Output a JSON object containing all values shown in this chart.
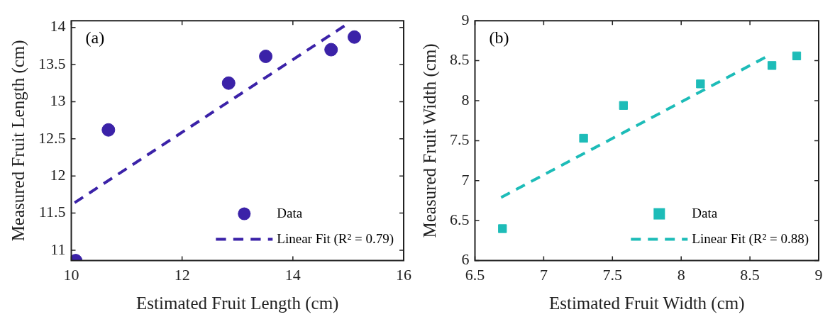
{
  "chart_data": [
    {
      "type": "scatter",
      "xlabel": "Estimated Fruit Length (cm)",
      "ylabel": "Measured Fruit Length (cm)",
      "annotations": [
        "(a)"
      ],
      "xlim": [
        10,
        16
      ],
      "xticks": [
        10,
        12,
        14,
        16
      ],
      "ylim": [
        10.86,
        14.09
      ],
      "yticks": [
        11,
        11.5,
        12,
        12.5,
        13,
        13.5,
        14
      ],
      "grid": false,
      "legend": "bottom right",
      "series": [
        {
          "name": "Data",
          "type": "scatter",
          "marker": "circle",
          "color": "#3b22a8",
          "x": [
            10.08,
            10.67,
            12.84,
            13.51,
            14.69,
            15.11
          ],
          "values": [
            10.86,
            12.62,
            13.25,
            13.61,
            13.7,
            13.87
          ]
        },
        {
          "name": "Linear Fit (R² = 0.79)",
          "type": "line",
          "marker": "none",
          "line_style": "dashed",
          "color": "#3b22a8",
          "x": [
            10.06,
            14.93
          ],
          "values": [
            11.64,
            14.02
          ]
        }
      ]
    },
    {
      "type": "scatter",
      "xlabel": "Estimated Fruit Width (cm)",
      "ylabel": "Measured Fruit Width (cm)",
      "annotations": [
        "(b)"
      ],
      "xlim": [
        6.5,
        9
      ],
      "xticks": [
        6.5,
        7,
        7.5,
        8,
        8.5,
        9
      ],
      "ylim": [
        6,
        9
      ],
      "yticks": [
        6,
        6.5,
        7,
        7.5,
        8,
        8.5,
        9
      ],
      "grid": false,
      "legend": "bottom right",
      "series": [
        {
          "name": "Data",
          "type": "scatter",
          "marker": "square",
          "color": "#1dbcb8",
          "x": [
            6.7,
            7.29,
            7.58,
            8.14,
            8.66,
            8.84
          ],
          "values": [
            6.4,
            7.53,
            7.94,
            8.21,
            8.44,
            8.56
          ]
        },
        {
          "name": "Linear Fit (R² = 0.88)",
          "type": "line",
          "marker": "none",
          "line_style": "dashed",
          "color": "#1dbcb8",
          "x": [
            6.69,
            8.61
          ],
          "values": [
            6.79,
            8.54
          ]
        }
      ]
    }
  ]
}
